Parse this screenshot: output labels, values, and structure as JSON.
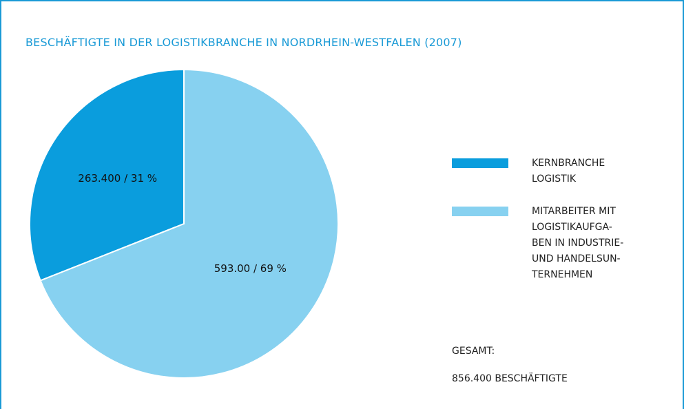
{
  "chart_data": {
    "type": "pie",
    "title": "BESCHÄFTIGTE IN DER LOGISTIKBRANCHE IN NORDRHEIN-WESTFALEN (2007)",
    "series": [
      {
        "name": "KERNBRANCHE\nLOGISTIK",
        "color": "#0a9ddd"
      },
      {
        "name": "MITARBEITER MIT\nLOGISTIKAUFGA-\nBEN IN INDUSTRIE-\nUND HANDELSUN-\nTERNEHMEN",
        "color": "#87d1f0"
      }
    ],
    "values": [
      31,
      69
    ],
    "value_labels": [
      "263.400 / 31 %",
      "593.00 / 69 %"
    ],
    "annotations": [
      "GESAMT:",
      "856.400 BESCHÄFTIGTE"
    ]
  }
}
